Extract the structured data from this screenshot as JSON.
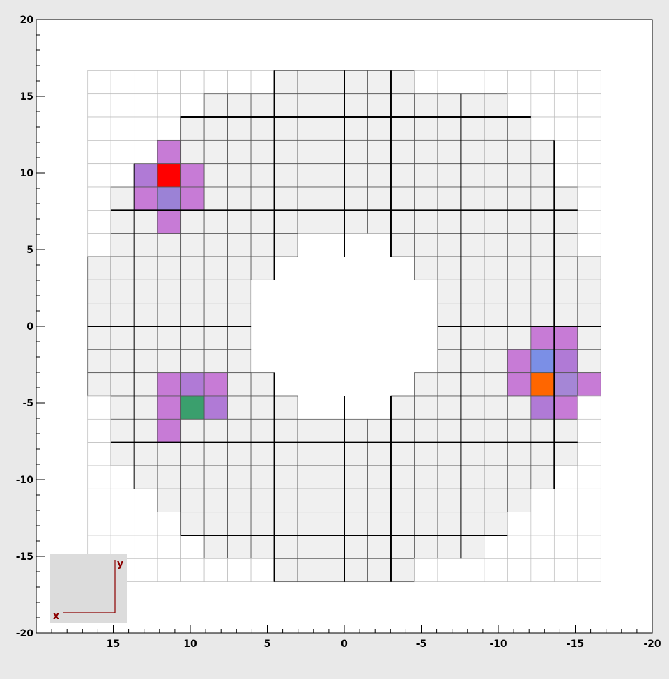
{
  "chart_data": {
    "type": "heatmap",
    "xlim": [
      20,
      -20
    ],
    "ylim": [
      -20,
      20
    ],
    "x_reversed": true,
    "cell_size": 1.515,
    "x_ticks": [
      15,
      10,
      5,
      0,
      -5,
      -10,
      -15,
      -20
    ],
    "x_tick_labels": [
      "15",
      "10",
      "5",
      "0",
      "-5",
      "-10",
      "-15",
      "-20"
    ],
    "y_ticks": [
      20,
      15,
      10,
      5,
      0,
      -5,
      -10,
      -15,
      -20
    ],
    "y_tick_labels": [
      "20",
      "15",
      "10",
      "5",
      "0",
      "-5",
      "-10",
      "-15",
      "-20"
    ],
    "grid_columns": 22,
    "grid_rows": 22,
    "background_cell_color": "#f0f0f0",
    "empty_cell_color": "#ffffff",
    "row_occupancy": [
      {
        "row": 0,
        "ranges": [
          [
            8,
            13
          ]
        ]
      },
      {
        "row": 1,
        "ranges": [
          [
            5,
            17
          ]
        ]
      },
      {
        "row": 2,
        "ranges": [
          [
            4,
            18
          ]
        ]
      },
      {
        "row": 3,
        "ranges": [
          [
            3,
            19
          ]
        ]
      },
      {
        "row": 4,
        "ranges": [
          [
            2,
            19
          ]
        ]
      },
      {
        "row": 5,
        "ranges": [
          [
            1,
            20
          ]
        ]
      },
      {
        "row": 6,
        "ranges": [
          [
            1,
            20
          ]
        ]
      },
      {
        "row": 7,
        "ranges": [
          [
            1,
            8
          ],
          [
            13,
            20
          ]
        ]
      },
      {
        "row": 8,
        "ranges": [
          [
            0,
            7
          ],
          [
            14,
            21
          ]
        ]
      },
      {
        "row": 9,
        "ranges": [
          [
            0,
            6
          ],
          [
            15,
            21
          ]
        ]
      },
      {
        "row": 10,
        "ranges": [
          [
            0,
            6
          ],
          [
            15,
            21
          ]
        ]
      },
      {
        "row": 11,
        "ranges": [
          [
            0,
            6
          ],
          [
            15,
            21
          ]
        ]
      },
      {
        "row": 12,
        "ranges": [
          [
            0,
            6
          ],
          [
            15,
            21
          ]
        ]
      },
      {
        "row": 13,
        "ranges": [
          [
            0,
            7
          ],
          [
            14,
            21
          ]
        ]
      },
      {
        "row": 14,
        "ranges": [
          [
            1,
            8
          ],
          [
            13,
            20
          ]
        ]
      },
      {
        "row": 15,
        "ranges": [
          [
            1,
            20
          ]
        ]
      },
      {
        "row": 16,
        "ranges": [
          [
            1,
            20
          ]
        ]
      },
      {
        "row": 17,
        "ranges": [
          [
            2,
            19
          ]
        ]
      },
      {
        "row": 18,
        "ranges": [
          [
            3,
            18
          ]
        ]
      },
      {
        "row": 19,
        "ranges": [
          [
            4,
            17
          ]
        ]
      },
      {
        "row": 20,
        "ranges": [
          [
            5,
            16
          ]
        ]
      },
      {
        "row": 21,
        "ranges": [
          [
            8,
            13
          ]
        ]
      }
    ],
    "module_lines_x": [
      2,
      8,
      11,
      13,
      16,
      20
    ],
    "module_lines_y": [
      2,
      6,
      11,
      16,
      20
    ],
    "hot_cells": [
      {
        "col": 3,
        "row": 3,
        "color": "#c77bd6"
      },
      {
        "col": 2,
        "row": 4,
        "color": "#b07ad6"
      },
      {
        "col": 3,
        "row": 4,
        "color": "#ff0000"
      },
      {
        "col": 4,
        "row": 4,
        "color": "#c77bd6"
      },
      {
        "col": 2,
        "row": 5,
        "color": "#c77bd6"
      },
      {
        "col": 3,
        "row": 5,
        "color": "#9b82d6"
      },
      {
        "col": 4,
        "row": 5,
        "color": "#c77bd6"
      },
      {
        "col": 3,
        "row": 6,
        "color": "#c77bd6"
      },
      {
        "col": 3,
        "row": 13,
        "color": "#c77bd6"
      },
      {
        "col": 4,
        "row": 13,
        "color": "#b07ad6"
      },
      {
        "col": 5,
        "row": 13,
        "color": "#c77bd6"
      },
      {
        "col": 3,
        "row": 14,
        "color": "#c77bd6"
      },
      {
        "col": 4,
        "row": 14,
        "color": "#3a9f6d"
      },
      {
        "col": 5,
        "row": 14,
        "color": "#b07ad6"
      },
      {
        "col": 3,
        "row": 15,
        "color": "#c77bd6"
      },
      {
        "col": 19,
        "row": 11,
        "color": "#c77bd6"
      },
      {
        "col": 20,
        "row": 11,
        "color": "#c77bd6"
      },
      {
        "col": 18,
        "row": 12,
        "color": "#c77bd6"
      },
      {
        "col": 19,
        "row": 12,
        "color": "#7b8fe6"
      },
      {
        "col": 20,
        "row": 12,
        "color": "#b07ad6"
      },
      {
        "col": 18,
        "row": 13,
        "color": "#c77bd6"
      },
      {
        "col": 19,
        "row": 13,
        "color": "#ff6600"
      },
      {
        "col": 20,
        "row": 13,
        "color": "#a586d6"
      },
      {
        "col": 21,
        "row": 13,
        "color": "#c77bd6"
      },
      {
        "col": 19,
        "row": 14,
        "color": "#b07ad6"
      },
      {
        "col": 20,
        "row": 14,
        "color": "#c77bd6"
      }
    ],
    "axis_indicator": {
      "x_label": "x",
      "y_label": "y",
      "color": "#8b0000",
      "box_color": "#dcdcdc"
    }
  }
}
